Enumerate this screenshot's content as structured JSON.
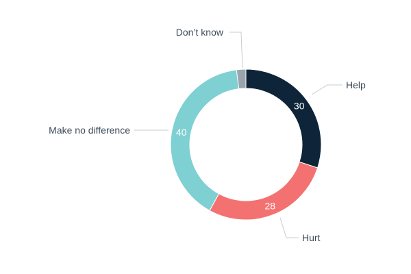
{
  "chart_data": {
    "type": "pie",
    "variant": "donut",
    "legend": "none",
    "slices": [
      {
        "label": "Help",
        "value": 30,
        "color": "#0e2438",
        "show_value": true
      },
      {
        "label": "Hurt",
        "value": 28,
        "color": "#f47171",
        "show_value": true
      },
      {
        "label": "Make no difference",
        "value": 40,
        "color": "#7ed0d2",
        "show_value": true
      },
      {
        "label": "Don’t know",
        "value": 2,
        "color": "#9aa4ad",
        "show_value": false
      }
    ]
  }
}
